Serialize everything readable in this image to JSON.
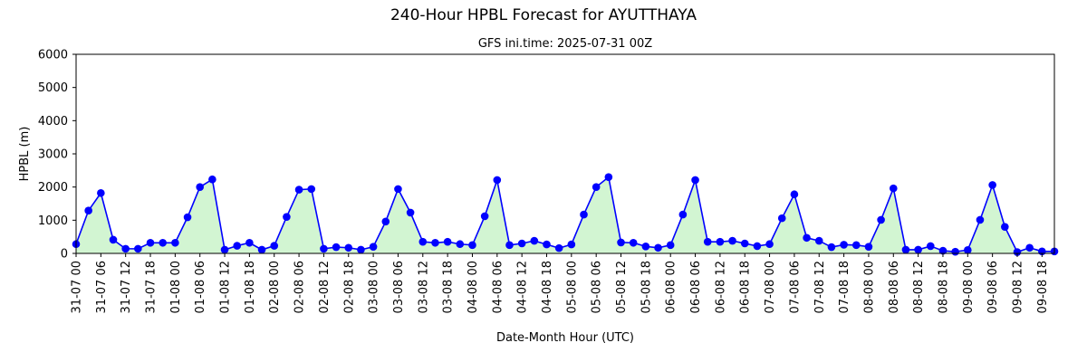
{
  "figure": {
    "suptitle": "240-Hour HPBL Forecast for AYUTTHAYA",
    "subtitle": "GFS ini.time: 2025-07-31 00Z"
  },
  "colors": {
    "line": "#0000ff",
    "marker": "#0000ff",
    "fill": "#d2f5d2",
    "axes": "#000000",
    "background": "#ffffff"
  },
  "chart_data": {
    "type": "line",
    "title": "GFS ini.time: 2025-07-31 00Z",
    "xlabel": "Date-Month Hour (UTC)",
    "ylabel": "HPBL (m)",
    "ylim": [
      0,
      6000
    ],
    "yticks": [
      0,
      1000,
      2000,
      3000,
      4000,
      5000,
      6000
    ],
    "grid": false,
    "fill_under_line": true,
    "x_step_hours": 3,
    "xtick_labels": [
      "31-07 00",
      "31-07 06",
      "31-07 12",
      "31-07 18",
      "01-08 00",
      "01-08 06",
      "01-08 12",
      "01-08 18",
      "02-08 00",
      "02-08 06",
      "02-08 12",
      "02-08 18",
      "03-08 00",
      "03-08 06",
      "03-08 12",
      "03-08 18",
      "04-08 00",
      "04-08 06",
      "04-08 12",
      "04-08 18",
      "05-08 00",
      "05-08 06",
      "05-08 12",
      "05-08 18",
      "06-08 00",
      "06-08 06",
      "06-08 12",
      "06-08 18",
      "07-08 00",
      "07-08 06",
      "07-08 12",
      "07-08 18",
      "08-08 00",
      "08-08 06",
      "08-08 12",
      "08-08 18",
      "09-08 00",
      "09-08 06",
      "09-08 12",
      "09-08 18"
    ],
    "series": [
      {
        "values": [
          280,
          1290,
          1820,
          410,
          140,
          140,
          320,
          320,
          320,
          1090,
          2000,
          2230,
          110,
          230,
          320,
          110,
          230,
          1100,
          1920,
          1940,
          140,
          190,
          170,
          110,
          200,
          960,
          1940,
          1230,
          350,
          320,
          350,
          280,
          250,
          1120,
          2210,
          250,
          300,
          380,
          270,
          160,
          270,
          1170,
          2000,
          2300,
          330,
          320,
          210,
          170,
          250,
          1170,
          2210,
          350,
          350,
          380,
          300,
          220,
          280,
          1060,
          1780,
          470,
          380,
          190,
          260,
          250,
          200,
          1010,
          1960,
          110,
          110,
          220,
          80,
          50,
          100,
          1010,
          2060,
          800,
          40,
          170,
          60,
          60
        ]
      }
    ]
  }
}
